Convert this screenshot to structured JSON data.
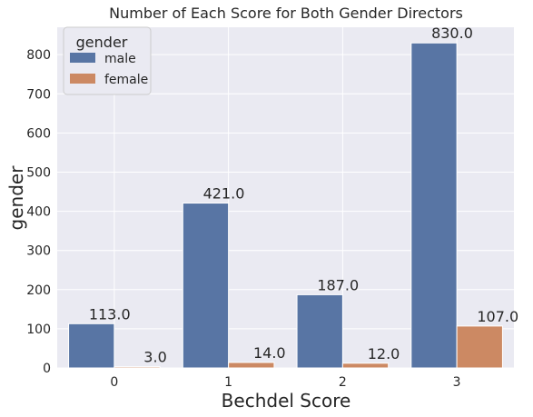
{
  "chart_data": {
    "type": "bar",
    "title": "Number of Each Score for Both Gender Directors",
    "xlabel": "Bechdel Score",
    "ylabel": "gender",
    "categories": [
      "0",
      "1",
      "2",
      "3"
    ],
    "series": [
      {
        "name": "male",
        "values": [
          113,
          421,
          187,
          830
        ],
        "labels": [
          "113.0",
          "421.0",
          "187.0",
          "830.0"
        ],
        "color": "#5875a4"
      },
      {
        "name": "female",
        "values": [
          3,
          14,
          12,
          107
        ],
        "labels": [
          "3.0",
          "14.0",
          "12.0",
          "107.0"
        ],
        "color": "#cc8963"
      }
    ],
    "ylim": [
      0,
      870
    ],
    "yticks": [
      0,
      100,
      200,
      300,
      400,
      500,
      600,
      700,
      800
    ],
    "grid": true,
    "background": "#eaeaf2",
    "legend": {
      "title": "gender",
      "position": "top-left"
    }
  }
}
